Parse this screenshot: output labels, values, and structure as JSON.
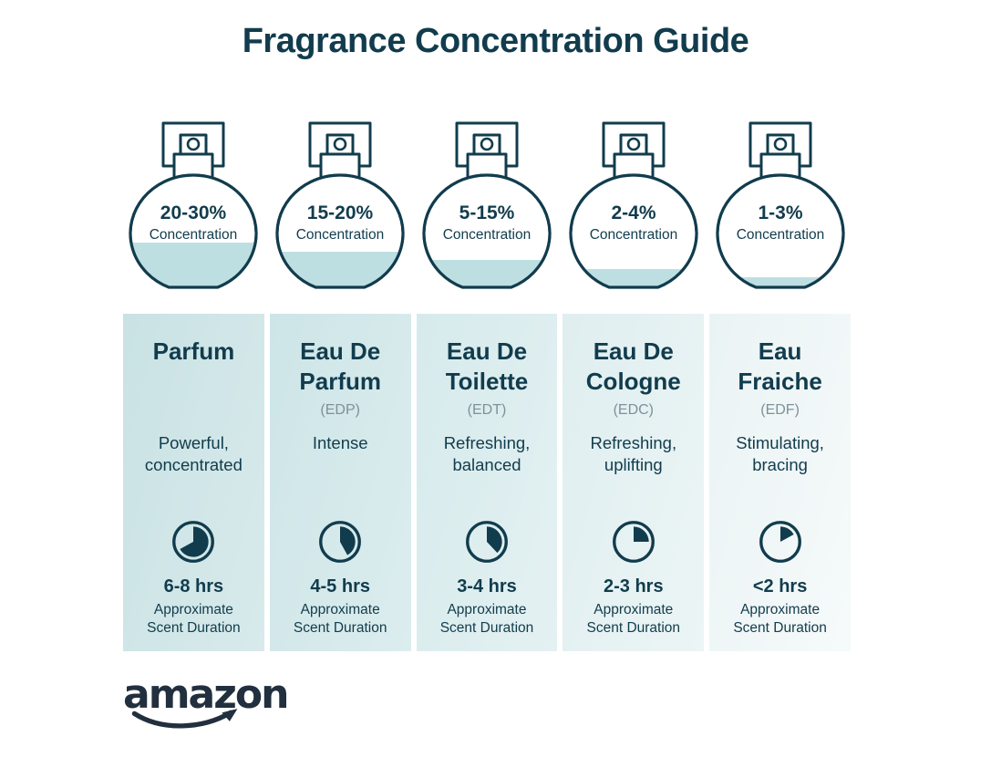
{
  "title": "Fragrance Concentration Guide",
  "colors": {
    "dark_teal": "#113c4d",
    "muted_gray": "#7e9199",
    "bottle_liquid": "#bedfe2",
    "logo": "#222f3e"
  },
  "fragrances": [
    {
      "concentration": "20-30%",
      "concentration_label": "Concentration",
      "liquid_y": "137",
      "name": "Parfum",
      "abbr": "",
      "description": "Powerful,\nconcentrated",
      "clock_fraction": "0.67",
      "duration": "6-8 hrs",
      "duration_note": "Approximate\nScent Duration",
      "bg_from": "#c9e2e4",
      "bg_to": "#d8eaeb"
    },
    {
      "concentration": "15-20%",
      "concentration_label": "Concentration",
      "liquid_y": "147",
      "name": "Eau De\nParfum",
      "abbr": "(EDP)",
      "description": "Intense",
      "clock_fraction": "0.42",
      "duration": "4-5 hrs",
      "duration_note": "Approximate\nScent Duration",
      "bg_from": "#cde5e7",
      "bg_to": "#dcedee"
    },
    {
      "concentration": "5-15%",
      "concentration_label": "Concentration",
      "liquid_y": "156",
      "name": "Eau De\nToilette",
      "abbr": "(EDT)",
      "description": "Refreshing,\nbalanced",
      "clock_fraction": "0.38",
      "duration": "3-4 hrs",
      "duration_note": "Approximate\nScent Duration",
      "bg_from": "#d6eaec",
      "bg_to": "#e4f1f2"
    },
    {
      "concentration": "2-4%",
      "concentration_label": "Concentration",
      "liquid_y": "166",
      "name": "Eau De\nCologne",
      "abbr": "(EDC)",
      "description": "Refreshing,\nuplifting",
      "clock_fraction": "0.25",
      "duration": "2-3 hrs",
      "duration_note": "Approximate\nScent Duration",
      "bg_from": "#dfeef0",
      "bg_to": "#ecf5f5"
    },
    {
      "concentration": "1-3%",
      "concentration_label": "Concentration",
      "liquid_y": "175",
      "name": "Eau\nFraiche",
      "abbr": "(EDF)",
      "description": "Stimulating,\nbracing",
      "clock_fraction": "0.17",
      "duration": "<2 hrs",
      "duration_note": "Approximate\nScent Duration",
      "bg_from": "#eaf3f4",
      "bg_to": "#f6fafa"
    }
  ],
  "footer": {
    "brand": "amazon"
  }
}
